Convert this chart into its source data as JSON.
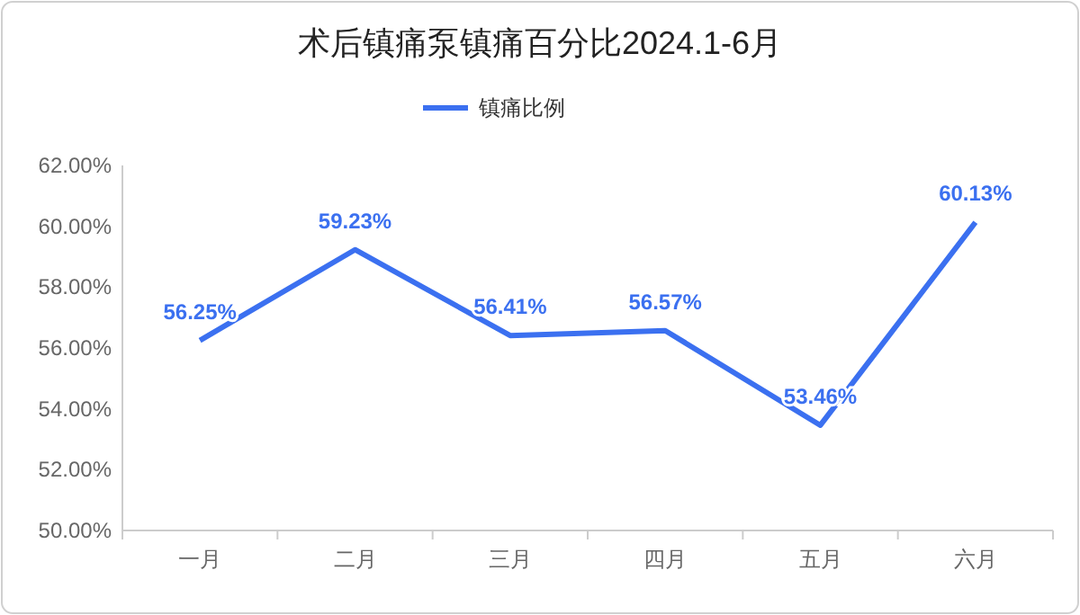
{
  "chart_data": {
    "type": "line",
    "title": "术后镇痛泵镇痛百分比2024.1-6月",
    "categories": [
      "一月",
      "二月",
      "三月",
      "四月",
      "五月",
      "六月"
    ],
    "series": [
      {
        "name": "镇痛比例",
        "color": "#3b70f0",
        "values": [
          56.25,
          59.23,
          56.41,
          56.57,
          53.46,
          60.13
        ],
        "value_labels": [
          "56.25%",
          "59.23%",
          "56.41%",
          "56.57%",
          "53.46%",
          "60.13%"
        ]
      }
    ],
    "ylim": [
      50,
      62
    ],
    "yticks": [
      {
        "value": 50,
        "label": "50.00%"
      },
      {
        "value": 52,
        "label": "52.00%"
      },
      {
        "value": 54,
        "label": "54.00%"
      },
      {
        "value": 56,
        "label": "56.00%"
      },
      {
        "value": 58,
        "label": "58.00%"
      },
      {
        "value": 60,
        "label": "60.00%"
      },
      {
        "value": 62,
        "label": "62.00%"
      }
    ],
    "grid": false,
    "legend": "top",
    "marker": "none",
    "line_style": "solid"
  }
}
